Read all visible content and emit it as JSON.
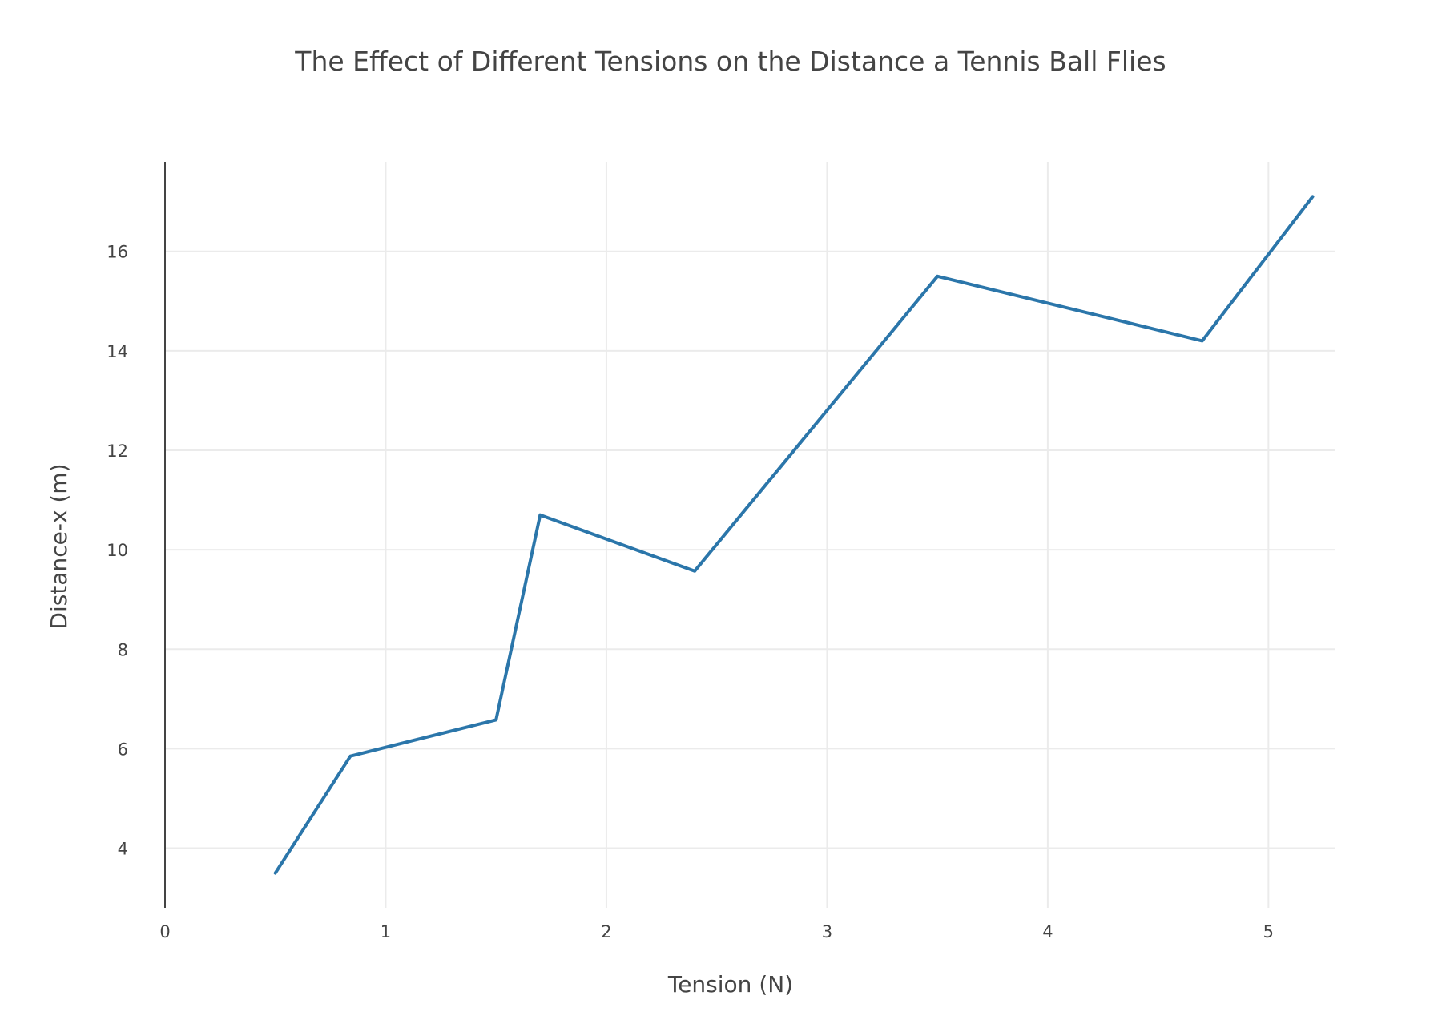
{
  "chart_data": {
    "type": "line",
    "title": "The Effect of Different Tensions on the Distance a Tennis Ball Flies",
    "xlabel": "Tension (N)",
    "ylabel": "Distance-x (m)",
    "xlim": [
      0,
      5.3
    ],
    "ylim": [
      2.8,
      17.8
    ],
    "xticks": [
      0,
      1,
      2,
      3,
      4,
      5
    ],
    "yticks": [
      4,
      6,
      8,
      10,
      12,
      14,
      16
    ],
    "grid": true,
    "legend": "none",
    "series": [
      {
        "color": "#2b76aa",
        "x": [
          0.5,
          0.84,
          1.5,
          1.7,
          2.4,
          3.5,
          4.7,
          5.2
        ],
        "y": [
          3.5,
          5.85,
          6.58,
          10.7,
          9.57,
          15.5,
          14.2,
          17.1
        ]
      }
    ]
  }
}
